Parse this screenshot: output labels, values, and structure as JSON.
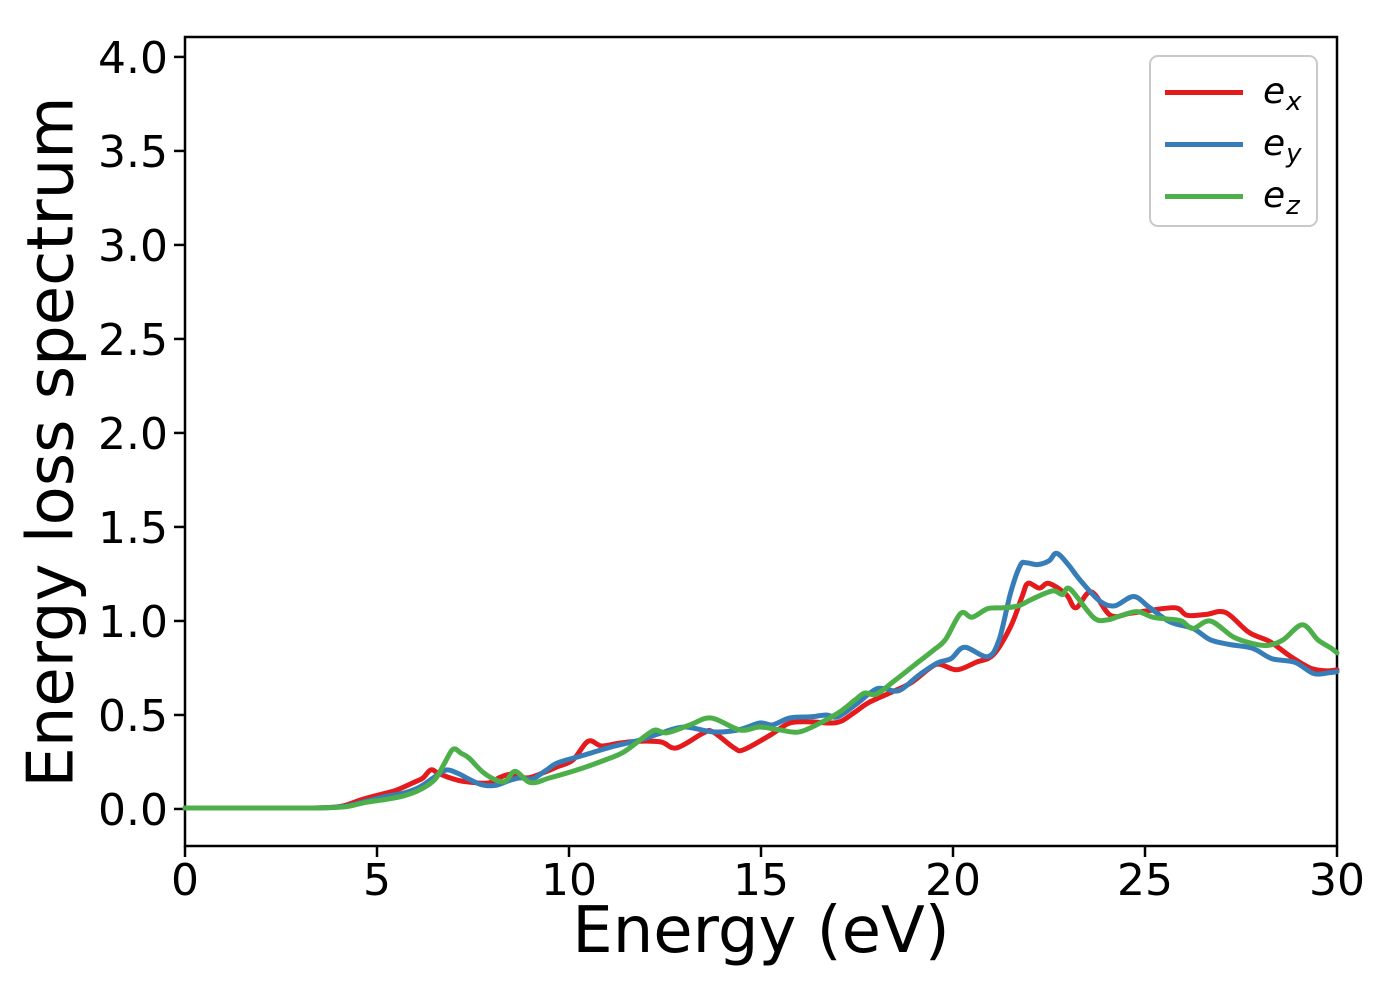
{
  "figure": {
    "background": "#ffffff"
  },
  "legend": {
    "entries": [
      {
        "main": "e",
        "sub": "x",
        "color": "#e41a1c"
      },
      {
        "main": "e",
        "sub": "y",
        "color": "#377eb8"
      },
      {
        "main": "e",
        "sub": "z",
        "color": "#4daf4a"
      }
    ]
  },
  "chart_data": {
    "type": "line",
    "title": "",
    "xlabel": "Energy (eV)",
    "ylabel": "Energy loss spectrum",
    "xlim": [
      0,
      30
    ],
    "ylim": [
      -0.197,
      4.106
    ],
    "grid": false,
    "legend_position": "upper right",
    "xticks": {
      "values": [
        0,
        5,
        10,
        15,
        20,
        25,
        30
      ],
      "labels": [
        "0",
        "5",
        "10",
        "15",
        "20",
        "25",
        "30"
      ]
    },
    "yticks": {
      "values": [
        0,
        0.5,
        1.0,
        1.5,
        2.0,
        2.5,
        3.0,
        3.5,
        4.0
      ],
      "labels": [
        "0.0",
        "0.5",
        "1.0",
        "1.5",
        "2.0",
        "2.5",
        "3.0",
        "3.5",
        "4.0"
      ]
    },
    "axis_color": "#000000",
    "line_width": 5,
    "series": [
      {
        "name": "e_x",
        "color": "#e41a1c",
        "points": [
          [
            0,
            0.005
          ],
          [
            1,
            0.005
          ],
          [
            2,
            0.005
          ],
          [
            3,
            0.005
          ],
          [
            3.6,
            0.006
          ],
          [
            4.1,
            0.015
          ],
          [
            4.6,
            0.05
          ],
          [
            5.0,
            0.072
          ],
          [
            5.5,
            0.1
          ],
          [
            6.0,
            0.145
          ],
          [
            6.2,
            0.165
          ],
          [
            6.4,
            0.208
          ],
          [
            6.6,
            0.19
          ],
          [
            6.9,
            0.165
          ],
          [
            7.3,
            0.145
          ],
          [
            7.9,
            0.138
          ],
          [
            8.2,
            0.168
          ],
          [
            8.5,
            0.185
          ],
          [
            8.9,
            0.165
          ],
          [
            9.3,
            0.19
          ],
          [
            9.7,
            0.225
          ],
          [
            10.1,
            0.26
          ],
          [
            10.5,
            0.36
          ],
          [
            10.85,
            0.335
          ],
          [
            11.3,
            0.35
          ],
          [
            11.8,
            0.36
          ],
          [
            12.4,
            0.356
          ],
          [
            12.8,
            0.325
          ],
          [
            13.5,
            0.404
          ],
          [
            13.75,
            0.41
          ],
          [
            14.3,
            0.325
          ],
          [
            14.55,
            0.315
          ],
          [
            15.25,
            0.394
          ],
          [
            15.75,
            0.457
          ],
          [
            16.3,
            0.463
          ],
          [
            16.8,
            0.457
          ],
          [
            17.1,
            0.468
          ],
          [
            17.45,
            0.516
          ],
          [
            17.8,
            0.565
          ],
          [
            18.35,
            0.617
          ],
          [
            18.9,
            0.67
          ],
          [
            19.4,
            0.75
          ],
          [
            19.65,
            0.77
          ],
          [
            20.1,
            0.74
          ],
          [
            20.6,
            0.78
          ],
          [
            21.05,
            0.82
          ],
          [
            21.5,
            0.97
          ],
          [
            21.8,
            1.13
          ],
          [
            21.95,
            1.2
          ],
          [
            22.25,
            1.175
          ],
          [
            22.5,
            1.2
          ],
          [
            22.95,
            1.14
          ],
          [
            23.2,
            1.07
          ],
          [
            23.6,
            1.155
          ],
          [
            24.1,
            1.03
          ],
          [
            24.6,
            1.04
          ],
          [
            25.1,
            1.055
          ],
          [
            25.8,
            1.07
          ],
          [
            26.1,
            1.03
          ],
          [
            26.6,
            1.035
          ],
          [
            27.1,
            1.045
          ],
          [
            27.7,
            0.94
          ],
          [
            28.25,
            0.89
          ],
          [
            28.8,
            0.81
          ],
          [
            29.3,
            0.75
          ],
          [
            29.7,
            0.735
          ],
          [
            30,
            0.74
          ]
        ]
      },
      {
        "name": "e_y",
        "color": "#377eb8",
        "points": [
          [
            0,
            0.005
          ],
          [
            1,
            0.005
          ],
          [
            2,
            0.005
          ],
          [
            3,
            0.005
          ],
          [
            3.6,
            0.006
          ],
          [
            4.2,
            0.015
          ],
          [
            4.7,
            0.04
          ],
          [
            5.2,
            0.065
          ],
          [
            5.7,
            0.085
          ],
          [
            6.1,
            0.115
          ],
          [
            6.5,
            0.17
          ],
          [
            6.8,
            0.207
          ],
          [
            7.1,
            0.19
          ],
          [
            7.4,
            0.158
          ],
          [
            7.75,
            0.128
          ],
          [
            8.1,
            0.126
          ],
          [
            8.5,
            0.155
          ],
          [
            8.75,
            0.165
          ],
          [
            9.05,
            0.16
          ],
          [
            9.4,
            0.205
          ],
          [
            9.7,
            0.245
          ],
          [
            10.4,
            0.287
          ],
          [
            11.1,
            0.33
          ],
          [
            11.85,
            0.367
          ],
          [
            12.4,
            0.404
          ],
          [
            13.0,
            0.436
          ],
          [
            13.75,
            0.41
          ],
          [
            14.4,
            0.42
          ],
          [
            14.97,
            0.457
          ],
          [
            15.3,
            0.447
          ],
          [
            15.75,
            0.484
          ],
          [
            16.3,
            0.49
          ],
          [
            16.7,
            0.5
          ],
          [
            17.0,
            0.49
          ],
          [
            17.45,
            0.553
          ],
          [
            17.95,
            0.633
          ],
          [
            18.2,
            0.64
          ],
          [
            18.6,
            0.63
          ],
          [
            19.1,
            0.71
          ],
          [
            19.6,
            0.777
          ],
          [
            19.95,
            0.8
          ],
          [
            20.3,
            0.86
          ],
          [
            20.9,
            0.81
          ],
          [
            21.2,
            0.9
          ],
          [
            21.5,
            1.15
          ],
          [
            21.75,
            1.295
          ],
          [
            21.9,
            1.31
          ],
          [
            22.2,
            1.3
          ],
          [
            22.5,
            1.32
          ],
          [
            22.7,
            1.36
          ],
          [
            23.0,
            1.3
          ],
          [
            23.3,
            1.22
          ],
          [
            23.8,
            1.11
          ],
          [
            24.2,
            1.08
          ],
          [
            24.7,
            1.13
          ],
          [
            25.1,
            1.075
          ],
          [
            25.65,
            0.995
          ],
          [
            26.25,
            0.96
          ],
          [
            26.7,
            0.9
          ],
          [
            27.2,
            0.875
          ],
          [
            27.8,
            0.855
          ],
          [
            28.3,
            0.8
          ],
          [
            28.9,
            0.78
          ],
          [
            29.4,
            0.72
          ],
          [
            29.8,
            0.725
          ],
          [
            30,
            0.73
          ]
        ]
      },
      {
        "name": "e_z",
        "color": "#4daf4a",
        "points": [
          [
            0,
            0.005
          ],
          [
            1,
            0.005
          ],
          [
            2,
            0.005
          ],
          [
            3,
            0.005
          ],
          [
            3.6,
            0.006
          ],
          [
            4.2,
            0.012
          ],
          [
            4.7,
            0.035
          ],
          [
            5.2,
            0.05
          ],
          [
            5.7,
            0.07
          ],
          [
            6.1,
            0.1
          ],
          [
            6.5,
            0.155
          ],
          [
            6.75,
            0.24
          ],
          [
            6.98,
            0.318
          ],
          [
            7.2,
            0.295
          ],
          [
            7.4,
            0.27
          ],
          [
            7.75,
            0.197
          ],
          [
            8.1,
            0.154
          ],
          [
            8.35,
            0.148
          ],
          [
            8.6,
            0.2
          ],
          [
            9.0,
            0.14
          ],
          [
            9.5,
            0.165
          ],
          [
            10.2,
            0.207
          ],
          [
            10.8,
            0.25
          ],
          [
            11.4,
            0.3
          ],
          [
            12.0,
            0.39
          ],
          [
            12.25,
            0.42
          ],
          [
            12.55,
            0.405
          ],
          [
            13.15,
            0.447
          ],
          [
            13.7,
            0.484
          ],
          [
            14.45,
            0.42
          ],
          [
            14.97,
            0.436
          ],
          [
            15.5,
            0.42
          ],
          [
            16.0,
            0.41
          ],
          [
            16.6,
            0.463
          ],
          [
            17.05,
            0.516
          ],
          [
            17.45,
            0.58
          ],
          [
            17.7,
            0.617
          ],
          [
            18.0,
            0.61
          ],
          [
            18.5,
            0.686
          ],
          [
            19.0,
            0.766
          ],
          [
            19.5,
            0.846
          ],
          [
            19.8,
            0.9
          ],
          [
            20.2,
            1.04
          ],
          [
            20.5,
            1.02
          ],
          [
            20.9,
            1.065
          ],
          [
            21.3,
            1.07
          ],
          [
            21.7,
            1.08
          ],
          [
            22.1,
            1.12
          ],
          [
            22.6,
            1.16
          ],
          [
            22.85,
            1.14
          ],
          [
            23.05,
            1.17
          ],
          [
            23.65,
            1.02
          ],
          [
            24.0,
            1.005
          ],
          [
            24.4,
            1.03
          ],
          [
            24.8,
            1.05
          ],
          [
            25.2,
            1.02
          ],
          [
            25.6,
            1.01
          ],
          [
            25.95,
            1.0
          ],
          [
            26.25,
            0.96
          ],
          [
            26.7,
            1.0
          ],
          [
            27.3,
            0.915
          ],
          [
            27.8,
            0.88
          ],
          [
            28.2,
            0.87
          ],
          [
            28.6,
            0.9
          ],
          [
            29.1,
            0.98
          ],
          [
            29.5,
            0.9
          ],
          [
            29.85,
            0.855
          ],
          [
            30,
            0.83
          ]
        ]
      }
    ]
  }
}
